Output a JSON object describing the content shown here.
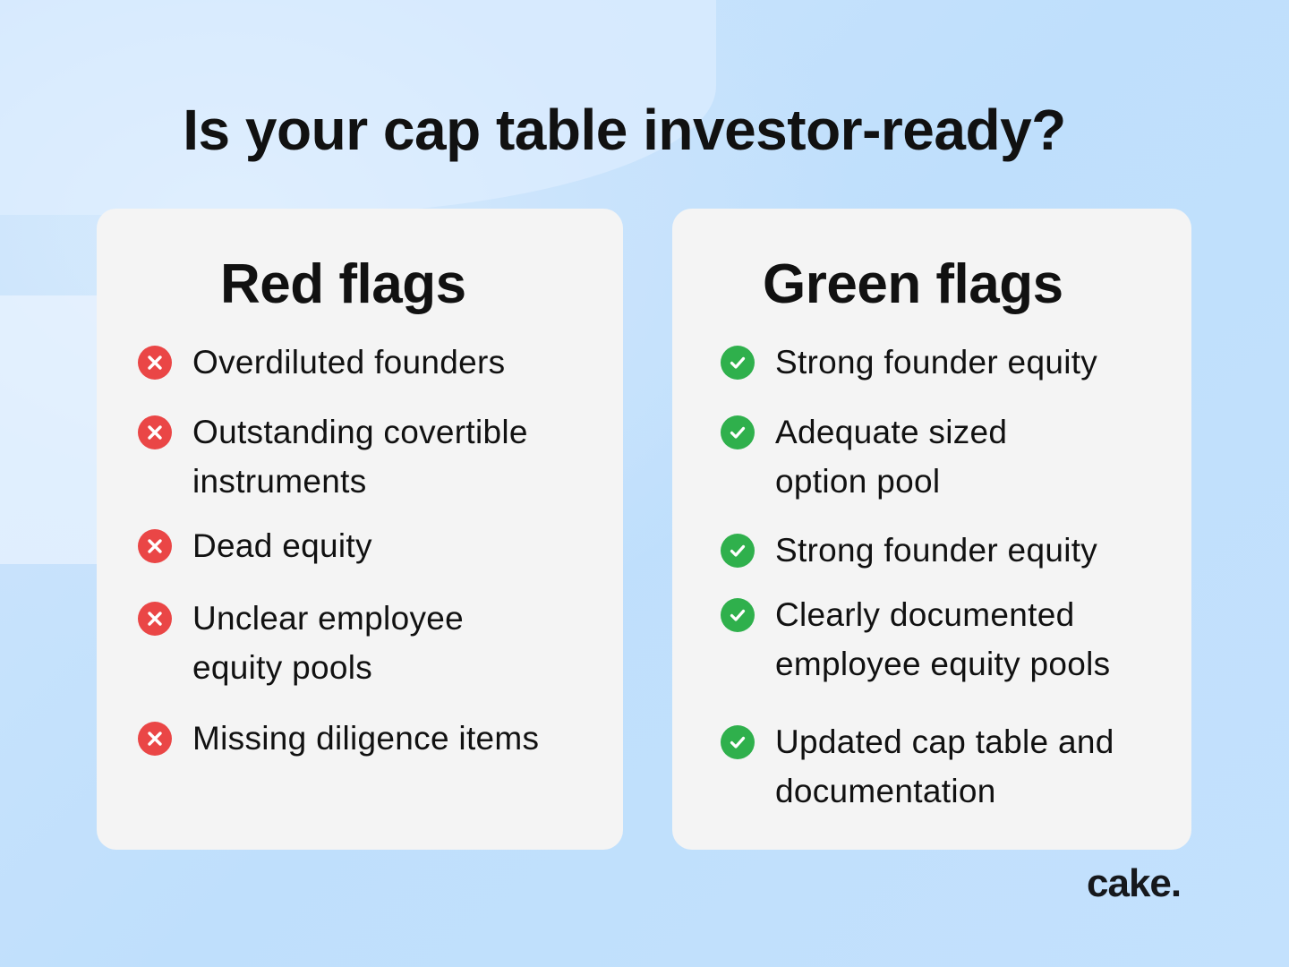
{
  "title": "Is your cap table investor-ready?",
  "colors": {
    "red": "#ea4646",
    "green": "#2fb04c",
    "card": "#f4f4f4",
    "background": "#c3e1fd"
  },
  "red_card": {
    "heading": "Red flags",
    "icon": "x-circle-icon",
    "items": [
      {
        "label": "Overdiluted founders"
      },
      {
        "label": "Outstanding covertible\ninstruments"
      },
      {
        "label": "Dead equity"
      },
      {
        "label": "Unclear employee\nequity pools"
      },
      {
        "label": "Missing diligence items"
      }
    ]
  },
  "green_card": {
    "heading": "Green flags",
    "icon": "check-circle-icon",
    "items": [
      {
        "label": "Strong founder equity"
      },
      {
        "label": "Adequate sized\noption pool"
      },
      {
        "label": "Strong founder equity"
      },
      {
        "label": "Clearly documented\nemployee equity pools"
      },
      {
        "label": "Updated cap table and\ndocumentation"
      }
    ]
  },
  "logo": "cake."
}
